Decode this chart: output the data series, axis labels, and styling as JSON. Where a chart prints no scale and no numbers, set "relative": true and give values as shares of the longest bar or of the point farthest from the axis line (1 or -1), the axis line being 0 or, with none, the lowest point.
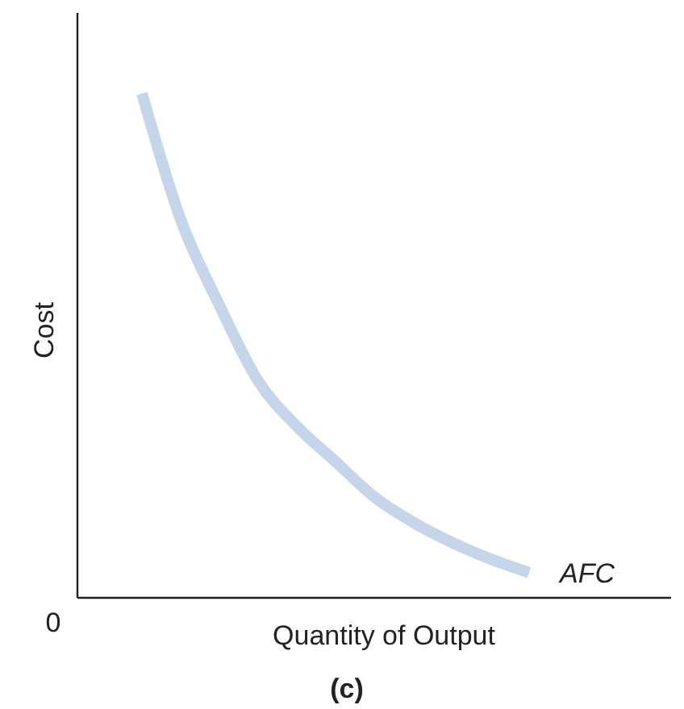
{
  "chart_data": {
    "type": "line",
    "relative": true,
    "xlabel": "Quantity of Output",
    "ylabel": "Cost",
    "categories": [
      null,
      null,
      null,
      null,
      null,
      null,
      null,
      null,
      null,
      null,
      null
    ],
    "series": [
      {
        "name": "AFC",
        "color": "#c5d5ea",
        "values": [
          1,
          0.75,
          0.58,
          0.43,
          0.34,
          0.27,
          0.2,
          0.15,
          0.11,
          0.077,
          0.05
        ]
      }
    ],
    "annotations": [
      "0",
      "(c)"
    ]
  }
}
